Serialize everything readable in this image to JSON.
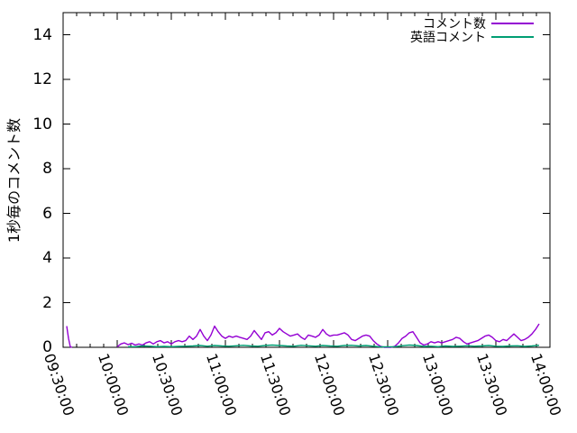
{
  "chart_data": {
    "type": "line",
    "title": "",
    "xlabel": "",
    "ylabel": "1秒毎のコメント数",
    "ylim": [
      0,
      15
    ],
    "x_range_minutes": [
      0,
      270
    ],
    "grid": false,
    "legend_position": "top-right-inside",
    "axis_color": "#000000",
    "y_ticks": [
      {
        "v": 0,
        "label": "0"
      },
      {
        "v": 2,
        "label": "2"
      },
      {
        "v": 4,
        "label": "4"
      },
      {
        "v": 6,
        "label": "6"
      },
      {
        "v": 8,
        "label": "8"
      },
      {
        "v": 10,
        "label": "10"
      },
      {
        "v": 12,
        "label": "12"
      },
      {
        "v": 14,
        "label": "14"
      }
    ],
    "x_ticks": [
      {
        "t": 0,
        "label": "09:30:00"
      },
      {
        "t": 30,
        "label": "10:00:00"
      },
      {
        "t": 60,
        "label": "10:30:00"
      },
      {
        "t": 90,
        "label": "11:00:00"
      },
      {
        "t": 120,
        "label": "11:30:00"
      },
      {
        "t": 150,
        "label": "12:00:00"
      },
      {
        "t": 180,
        "label": "12:30:00"
      },
      {
        "t": 210,
        "label": "13:00:00"
      },
      {
        "t": 240,
        "label": "13:30:00"
      },
      {
        "t": 270,
        "label": "14:00:00"
      }
    ],
    "x_minor_step_minutes": 7.5,
    "series": [
      {
        "name": "コメント数",
        "color": "#9400D3",
        "segments": [
          [
            [
              2,
              0.95
            ],
            [
              3,
              0.4
            ],
            [
              4,
              0.02
            ],
            [
              5,
              0
            ]
          ],
          [
            [
              30,
              0.02
            ],
            [
              32,
              0.15
            ],
            [
              34,
              0.2
            ],
            [
              36,
              0.12
            ],
            [
              38,
              0.18
            ],
            [
              40,
              0.1
            ],
            [
              42,
              0.15
            ],
            [
              44,
              0.1
            ],
            [
              46,
              0.2
            ],
            [
              48,
              0.25
            ],
            [
              50,
              0.15
            ],
            [
              52,
              0.25
            ],
            [
              54,
              0.3
            ],
            [
              56,
              0.2
            ],
            [
              58,
              0.25
            ],
            [
              60,
              0.15
            ],
            [
              62,
              0.25
            ],
            [
              64,
              0.3
            ],
            [
              66,
              0.25
            ],
            [
              68,
              0.3
            ],
            [
              70,
              0.5
            ],
            [
              72,
              0.35
            ],
            [
              74,
              0.5
            ],
            [
              76,
              0.8
            ],
            [
              78,
              0.5
            ],
            [
              80,
              0.3
            ],
            [
              82,
              0.55
            ],
            [
              84,
              0.95
            ],
            [
              86,
              0.7
            ],
            [
              88,
              0.5
            ],
            [
              90,
              0.4
            ],
            [
              92,
              0.5
            ],
            [
              94,
              0.45
            ],
            [
              96,
              0.5
            ],
            [
              98,
              0.45
            ],
            [
              100,
              0.4
            ],
            [
              102,
              0.35
            ],
            [
              104,
              0.5
            ],
            [
              106,
              0.75
            ],
            [
              108,
              0.55
            ],
            [
              110,
              0.35
            ],
            [
              112,
              0.65
            ],
            [
              114,
              0.7
            ],
            [
              116,
              0.55
            ],
            [
              118,
              0.65
            ],
            [
              120,
              0.85
            ],
            [
              122,
              0.7
            ],
            [
              124,
              0.6
            ],
            [
              126,
              0.5
            ],
            [
              128,
              0.55
            ],
            [
              130,
              0.6
            ],
            [
              132,
              0.45
            ],
            [
              134,
              0.35
            ],
            [
              136,
              0.55
            ],
            [
              138,
              0.5
            ],
            [
              140,
              0.45
            ],
            [
              142,
              0.55
            ],
            [
              144,
              0.8
            ],
            [
              146,
              0.6
            ],
            [
              148,
              0.5
            ],
            [
              150,
              0.55
            ],
            [
              152,
              0.55
            ],
            [
              154,
              0.6
            ],
            [
              156,
              0.65
            ],
            [
              158,
              0.55
            ],
            [
              160,
              0.35
            ],
            [
              162,
              0.3
            ],
            [
              164,
              0.4
            ],
            [
              166,
              0.5
            ],
            [
              168,
              0.55
            ],
            [
              170,
              0.5
            ],
            [
              172,
              0.3
            ],
            [
              174,
              0.15
            ],
            [
              176,
              0.05
            ],
            [
              178,
              0
            ],
            [
              180,
              0
            ],
            [
              182,
              0
            ],
            [
              184,
              0.05
            ],
            [
              186,
              0.2
            ],
            [
              188,
              0.4
            ],
            [
              190,
              0.5
            ],
            [
              192,
              0.65
            ],
            [
              194,
              0.7
            ],
            [
              196,
              0.45
            ],
            [
              198,
              0.2
            ],
            [
              200,
              0.1
            ],
            [
              202,
              0.15
            ],
            [
              204,
              0.25
            ],
            [
              206,
              0.2
            ],
            [
              208,
              0.25
            ],
            [
              210,
              0.2
            ],
            [
              212,
              0.25
            ],
            [
              214,
              0.3
            ],
            [
              216,
              0.35
            ],
            [
              218,
              0.45
            ],
            [
              220,
              0.4
            ],
            [
              222,
              0.25
            ],
            [
              224,
              0.15
            ],
            [
              226,
              0.2
            ],
            [
              228,
              0.25
            ],
            [
              230,
              0.3
            ],
            [
              232,
              0.4
            ],
            [
              234,
              0.5
            ],
            [
              236,
              0.55
            ],
            [
              238,
              0.45
            ],
            [
              240,
              0.3
            ],
            [
              242,
              0.25
            ],
            [
              244,
              0.35
            ],
            [
              246,
              0.3
            ],
            [
              248,
              0.45
            ],
            [
              250,
              0.6
            ],
            [
              252,
              0.45
            ],
            [
              254,
              0.3
            ],
            [
              256,
              0.35
            ],
            [
              258,
              0.45
            ],
            [
              260,
              0.6
            ],
            [
              262,
              0.8
            ],
            [
              264,
              1.05
            ]
          ]
        ]
      },
      {
        "name": "英語コメント",
        "color": "#009E73",
        "segments": [
          [
            [
              36,
              0.03
            ],
            [
              40,
              0.03
            ],
            [
              44,
              0.06
            ],
            [
              48,
              0.05
            ],
            [
              52,
              0.03
            ],
            [
              56,
              0.04
            ],
            [
              60,
              0.03
            ],
            [
              64,
              0.04
            ],
            [
              68,
              0.05
            ],
            [
              72,
              0.06
            ],
            [
              76,
              0.08
            ],
            [
              80,
              0.05
            ],
            [
              84,
              0.08
            ],
            [
              88,
              0.06
            ],
            [
              92,
              0.05
            ],
            [
              96,
              0.07
            ],
            [
              100,
              0.09
            ],
            [
              104,
              0.06
            ],
            [
              108,
              0.05
            ],
            [
              112,
              0.08
            ],
            [
              116,
              0.1
            ],
            [
              120,
              0.08
            ],
            [
              124,
              0.06
            ],
            [
              128,
              0.05
            ],
            [
              132,
              0.09
            ],
            [
              136,
              0.07
            ],
            [
              140,
              0.05
            ],
            [
              144,
              0.08
            ],
            [
              148,
              0.06
            ],
            [
              152,
              0.05
            ],
            [
              156,
              0.08
            ],
            [
              160,
              0.09
            ],
            [
              164,
              0.06
            ],
            [
              168,
              0.08
            ],
            [
              172,
              0.05
            ],
            [
              176,
              0.02
            ],
            [
              180,
              0.02
            ],
            [
              184,
              0.03
            ],
            [
              188,
              0.07
            ],
            [
              192,
              0.1
            ],
            [
              196,
              0.08
            ],
            [
              200,
              0.04
            ],
            [
              204,
              0.05
            ],
            [
              208,
              0.03
            ],
            [
              212,
              0.06
            ],
            [
              216,
              0.04
            ],
            [
              220,
              0.05
            ],
            [
              224,
              0.07
            ],
            [
              228,
              0.05
            ],
            [
              232,
              0.06
            ],
            [
              236,
              0.08
            ],
            [
              240,
              0.05
            ],
            [
              244,
              0.04
            ],
            [
              248,
              0.06
            ],
            [
              252,
              0.07
            ],
            [
              256,
              0.04
            ],
            [
              260,
              0.06
            ],
            [
              264,
              0.09
            ]
          ]
        ]
      }
    ]
  }
}
